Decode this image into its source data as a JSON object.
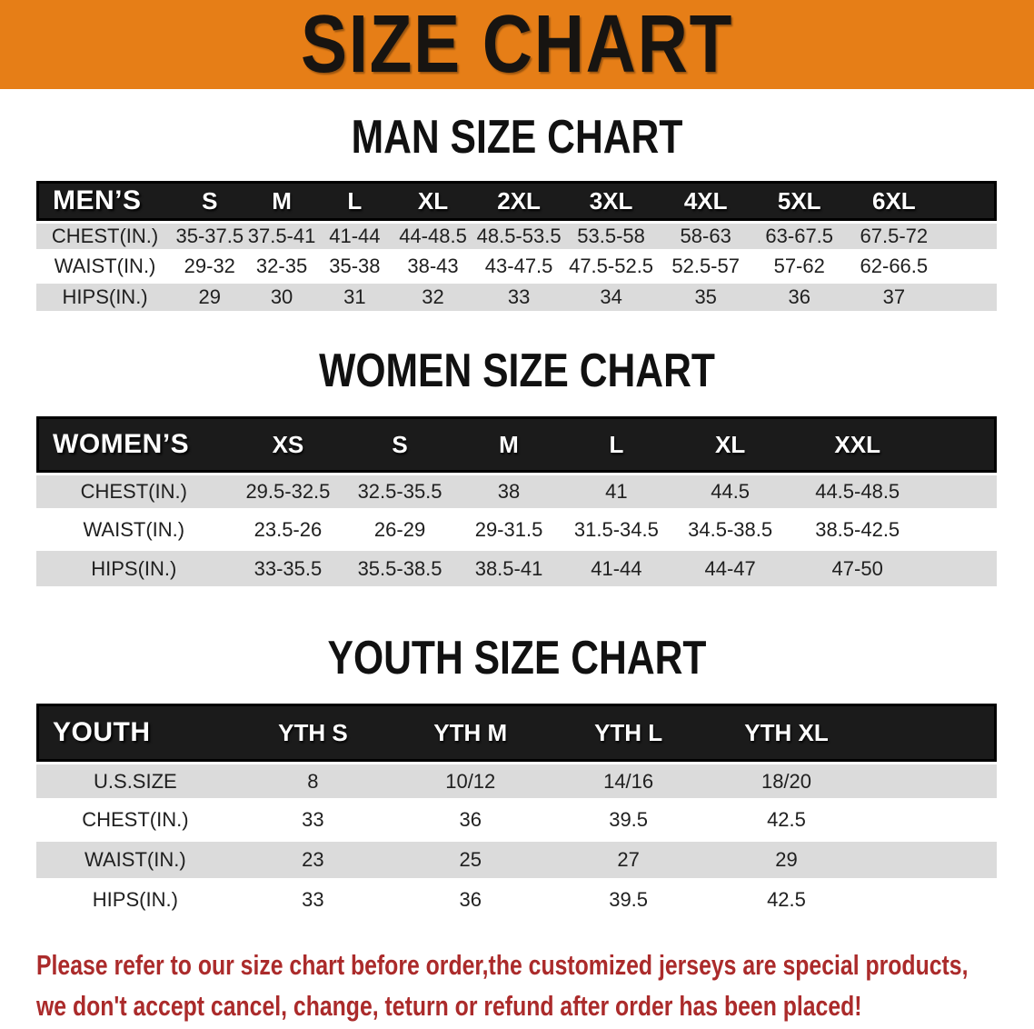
{
  "banner": {
    "title": "SIZE CHART"
  },
  "sections": [
    {
      "title": "MAN SIZE CHART",
      "corner_label": "MEN’S",
      "columns": [
        "S",
        "M",
        "L",
        "XL",
        "2XL",
        "3XL",
        "4XL",
        "5XL",
        "6XL"
      ],
      "rows": [
        {
          "label": "CHEST(IN.)",
          "values": [
            "35-37.5",
            "37.5-41",
            "41-44",
            "44-48.5",
            "48.5-53.5",
            "53.5-58",
            "58-63",
            "63-67.5",
            "67.5-72"
          ]
        },
        {
          "label": "WAIST(IN.)",
          "values": [
            "29-32",
            "32-35",
            "35-38",
            "38-43",
            "43-47.5",
            "47.5-52.5",
            "52.5-57",
            "57-62",
            "62-66.5"
          ]
        },
        {
          "label": "HIPS(IN.)",
          "values": [
            "29",
            "30",
            "31",
            "32",
            "33",
            "34",
            "35",
            "36",
            "37"
          ]
        }
      ]
    },
    {
      "title": "WOMEN SIZE CHART",
      "corner_label": "WOMEN’S",
      "columns": [
        "XS",
        "S",
        "M",
        "L",
        "XL",
        "XXL"
      ],
      "rows": [
        {
          "label": "CHEST(IN.)",
          "values": [
            "29.5-32.5",
            "32.5-35.5",
            "38",
            "41",
            "44.5",
            "44.5-48.5"
          ]
        },
        {
          "label": "WAIST(IN.)",
          "values": [
            "23.5-26",
            "26-29",
            "29-31.5",
            "31.5-34.5",
            "34.5-38.5",
            "38.5-42.5"
          ]
        },
        {
          "label": "HIPS(IN.)",
          "values": [
            "33-35.5",
            "35.5-38.5",
            "38.5-41",
            "41-44",
            "44-47",
            "47-50"
          ]
        }
      ]
    },
    {
      "title": "YOUTH SIZE CHART",
      "corner_label": "YOUTH",
      "columns": [
        "YTH S",
        "YTH M",
        "YTH L",
        "YTH XL"
      ],
      "rows": [
        {
          "label": "U.S.SIZE",
          "values": [
            "8",
            "10/12",
            "14/16",
            "18/20"
          ]
        },
        {
          "label": "CHEST(IN.)",
          "values": [
            "33",
            "36",
            "39.5",
            "42.5"
          ]
        },
        {
          "label": "WAIST(IN.)",
          "values": [
            "23",
            "25",
            "27",
            "29"
          ]
        },
        {
          "label": "HIPS(IN.)",
          "values": [
            "33",
            "36",
            "39.5",
            "42.5"
          ]
        }
      ]
    }
  ],
  "disclaimer": {
    "lines": [
      "Please refer to our size chart before order,the customized jerseys are special products,",
      "we don't accept cancel, change, teturn or refund after order has been placed!"
    ]
  },
  "colors": {
    "banner_bg": "#E67E17",
    "banner_text": "#171411",
    "table_header_bg": "#1B1B1B",
    "table_header_text": "#FFFFFF",
    "stripe_row_bg": "#DBDBDB",
    "body_text": "#1F1F1F",
    "disclaimer_text": "#AB2B2B"
  }
}
